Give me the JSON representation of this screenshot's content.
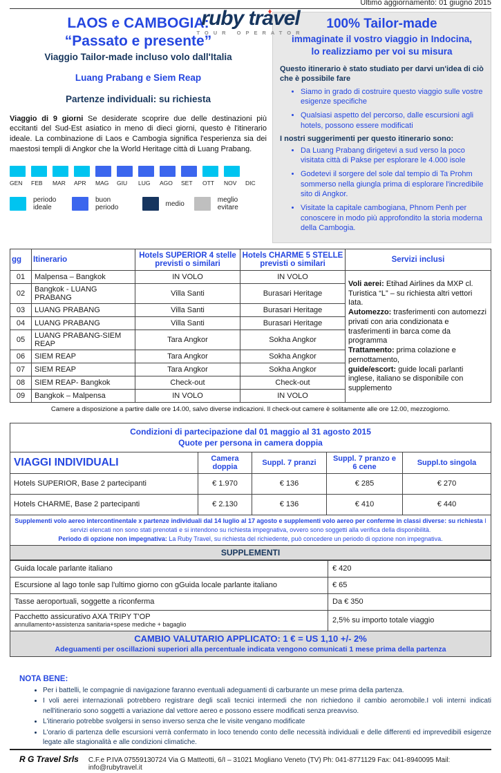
{
  "colors": {
    "accent_blue": "#2547E0",
    "navy": "#17365D",
    "ideal": "#00C4F0",
    "good": "#3B66EE",
    "medium": "#16355F",
    "avoid": "#BFBFBF",
    "box_gray": "#E8E8E8"
  },
  "header": {
    "brand": "ruby travel",
    "tagline": "TOUR OPERATOR",
    "updated": "Ultimo aggiornamento: 01 giugno 2015"
  },
  "intro": {
    "title1": "LAOS e CAMBOGIA:",
    "title2": "“Passato e presente”",
    "subtitle": "Viaggio Tailor-made incluso volo dall'Italia",
    "destinations": "Luang Prabang e Siem Reap",
    "departures": "Partenze individuali: su richiesta",
    "desc_bold": "Viaggio  di 9 giorni",
    "desc_rest": " Se desiderate scoprire due delle destinazioni più eccitanti del Sud-Est asiatico in meno di dieci giorni, questo è l'itinerario ideale. La combinazione di Laos e Cambogia significa l'esperienza sia dei maestosi templi di Angkor che la World Heritage città di Luang Prabang."
  },
  "calendar": {
    "months": [
      {
        "label": "GEN",
        "status": "ideal"
      },
      {
        "label": "FEB",
        "status": "ideal"
      },
      {
        "label": "MAR",
        "status": "ideal"
      },
      {
        "label": "APR",
        "status": "ideal"
      },
      {
        "label": "MAG",
        "status": "good"
      },
      {
        "label": "GIU",
        "status": "good"
      },
      {
        "label": "LUG",
        "status": "good"
      },
      {
        "label": "AGO",
        "status": "good"
      },
      {
        "label": "SET",
        "status": "good"
      },
      {
        "label": "OTT",
        "status": "ideal"
      },
      {
        "label": "NOV",
        "status": "ideal"
      },
      {
        "label": "DIC",
        "status": "none"
      }
    ],
    "legend": [
      {
        "label": "periodo ideale",
        "status": "ideal"
      },
      {
        "label": "buon periodo",
        "status": "good"
      },
      {
        "label": "medio",
        "status": "medium"
      },
      {
        "label": "meglio evitare",
        "status": "avoid"
      }
    ]
  },
  "tailor_box": {
    "title": "100% Tailor-made",
    "sub1": "immaginate il vostro viaggio in Indocina,",
    "sub2": "lo realizziamo per voi su misura",
    "intro": "Questo itinerario è stato studiato per darvi un'idea di ciò che è possibile fare",
    "bullets1": [
      "Siamo in grado di costruire questo viaggio sulle vostre esigenze specifiche",
      "Qualsiasi aspetto del percorso, dalle escursioni agli hotels, possono essere modificati"
    ],
    "suggestions_title": "I nostri suggerimenti per questo itinerario sono:",
    "bullets2": [
      "Da Luang Prabang dirigetevi a sud verso la poco visitata città di Pakse per esplorare le 4.000 isole",
      "Godetevi il sorgere del sole dal tempio di Ta Prohm sommerso nella giungla prima di esplorare l'incredibile sito di Angkor.",
      "Visitate la capitale cambogiana, Phnom Penh per conoscere in modo più approfondito la storia moderna della Cambogia."
    ]
  },
  "itinerary": {
    "h_gg": "gg",
    "h_it": "Itinerario",
    "h_sup1": "Hotels SUPERIOR  4 stelle",
    "h_sup2": "previsti o similari",
    "h_cha1": "Hotels CHARME 5 STELLE",
    "h_cha2": "previsti o similari",
    "h_serv": "Servizi inclusi",
    "rows": [
      [
        "01",
        "Malpensa – Bangkok",
        "IN VOLO",
        "IN VOLO"
      ],
      [
        "02",
        "Bangkok - LUANG PRABANG",
        "Villa Santi",
        "Burasari Heritage"
      ],
      [
        "03",
        "LUANG PRABANG",
        "Villa Santi",
        "Burasari Heritage"
      ],
      [
        "04",
        "LUANG PRABANG",
        "Villa Santi",
        "Burasari Heritage"
      ],
      [
        "05",
        "LUANG PRABANG-SIEM REAP",
        "Tara Angkor",
        "Sokha Angkor"
      ],
      [
        "06",
        "SIEM REAP",
        "Tara Angkor",
        "Sokha Angkor"
      ],
      [
        "07",
        "SIEM REAP",
        "Tara Angkor",
        "Sokha Angkor"
      ],
      [
        "08",
        "SIEM REAP- Bangkok",
        "Check-out",
        "Check-out"
      ],
      [
        "09",
        "Bangkok – Malpensa",
        "IN VOLO",
        "IN VOLO"
      ]
    ],
    "services": [
      {
        "b": "Voli  aerei:",
        "t": "  Etihad Airlines da MXP cl. Turistica “L” – su richiesta altri vettori Iata."
      },
      {
        "b": "Automezzo:",
        "t": "  trasferimenti con automezzi privati con aria condizionata e trasferimenti in barca come da programma"
      },
      {
        "b": "Trattamento:",
        "t": "  prima colazione e pernottamento,"
      },
      {
        "b": "guide/escort:",
        "t": " guide locali parlanti inglese, italiano se disponibile con supplemento"
      }
    ],
    "footnote": "Camere a disposizione a partire dalle ore 14.00, salvo diverse indicazioni. Il check-out camere è solitamente alle ore 12.00, mezzogiorno."
  },
  "pricing": {
    "title1": "Condizioni di partecipazione dal 01 maggio al 31 agosto 2015",
    "title2": "Quote per persona in camera doppia",
    "label_header": "VIAGGI INDIVIDUALI",
    "cols": [
      "Camera doppia",
      "Suppl. 7 pranzi",
      "Suppl. 7 pranzo e 6 cene",
      "Suppl.to singola"
    ],
    "rows": [
      {
        "label": "Hotels SUPERIOR, Base 2 partecipanti",
        "values": [
          "€  1.970",
          "€  136",
          "€  285",
          "€  270"
        ]
      },
      {
        "label": "Hotels CHARME, Base 2 partecipanti",
        "values": [
          "€  2.130",
          "€  136",
          "€  410",
          "€  440"
        ]
      }
    ],
    "note1_bold": "Supplementi volo aereo intercontinentale x partenze individuali  dal 14 luglio al 17 agosto  e supplementi volo aereo per conferme in classi diverse: su richiesta",
    "note1_rest": "  I servizi elencati non sono stati prenotati e si intendono su richiesta impegnativa, ovvero sono soggetti alla verifica della disponibilità.",
    "note2_bold": "Periodo di opzione non impegnativa:",
    "note2_rest": " La Ruby Travel, su richiesta del richiedente, può concedere un periodo di opzione non impegnativa."
  },
  "supplements": {
    "band": "SUPPLEMENTI",
    "rows": [
      {
        "label": "Guida locale parlante italiano",
        "sub": "",
        "value": "€ 420"
      },
      {
        "label": "Escursione al lago tonle sap l'ultimo giorno con gGuida locale parlante italiano",
        "sub": "",
        "value": "€ 65"
      },
      {
        "label": "Tasse aeroportuali, soggette a riconferma",
        "sub": "",
        "value": "Da €  350"
      },
      {
        "label": "Pacchetto assicurativo AXA TRIPY T'OP",
        "sub": "annullamento+assistenza sanitaria+spese mediche + bagaglio",
        "value": "2,5% su importo totale viaggio"
      }
    ]
  },
  "exchange": {
    "line1": "CAMBIO VALUTARIO APPLICATO: 1 € = US 1,10 +/- 2%",
    "line2": "Adeguamenti per oscillazioni superiori alla percentuale indicata vengono comunicati 1 mese prima della partenza"
  },
  "nota_bene": {
    "title": "NOTA BENE:",
    "bullets": [
      "Per i battelli, le compagnie di navigazione faranno eventuali adeguamenti di carburante un mese prima della partenza.",
      "I voli aerei internazionali potrebbero registrare degli scali tecnici intermedi che non richiedono il cambio aeromobile.I voli interni indicati nell'itinerario sono soggetti a variazione dal vettore aereo e possono essere modificati senza preavviso.",
      "L'itinerario potrebbe svolgersi in senso inverso senza che le visite vengano modificate",
      "L'orario di partenza delle escursioni verrà confermato in loco tenendo conto delle necessità individuali e delle differenti ed imprevedibili esigenze legate alle stagionalità e alle condizioni climatiche."
    ]
  },
  "footer": {
    "company": "R G Travel Srls",
    "details": "C.F.e P.IVA 07559130724 Via G Matteotti, 6/I  –  31021 Mogliano Veneto (TV)   Ph: 041-8771129   Fax: 041-8940095  Mail: info@rubytravel.it"
  }
}
